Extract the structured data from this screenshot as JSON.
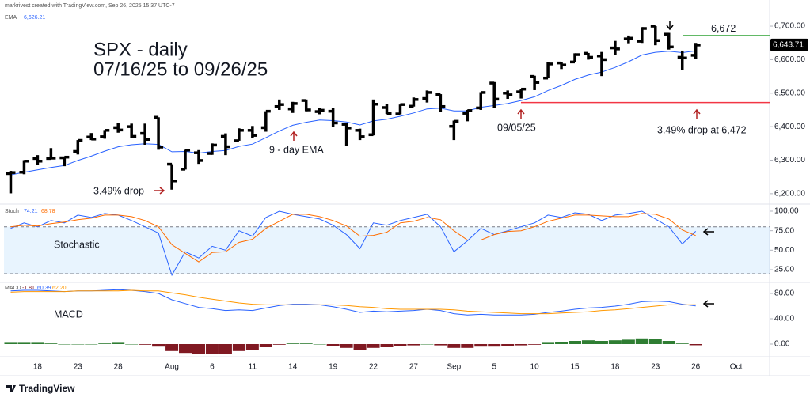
{
  "header": {
    "credit": "markrivest created with TradingView.com, Sep 26, 2025 15:37 UTC-7",
    "brand": "TradingView"
  },
  "xlim": [
    -0.5,
    56.5
  ],
  "xticks": [
    {
      "value": 2,
      "label": "18"
    },
    {
      "value": 5,
      "label": "23"
    },
    {
      "value": 8,
      "label": "28"
    },
    {
      "value": 12,
      "label": "Aug"
    },
    {
      "value": 15,
      "label": "6"
    },
    {
      "value": 18,
      "label": "11"
    },
    {
      "value": 21,
      "label": "14"
    },
    {
      "value": 24,
      "label": "19"
    },
    {
      "value": 27,
      "label": "22"
    },
    {
      "value": 30,
      "label": "27"
    },
    {
      "value": 33,
      "label": "Sep"
    },
    {
      "value": 36,
      "label": "5"
    },
    {
      "value": 39,
      "label": "10"
    },
    {
      "value": 42,
      "label": "15"
    },
    {
      "value": 45,
      "label": "18"
    },
    {
      "value": 48,
      "label": "23"
    },
    {
      "value": 51,
      "label": "26"
    },
    {
      "value": 54,
      "label": "Oct"
    }
  ],
  "chart_data": [
    {
      "type": "ohlc",
      "title": "SPX - daily",
      "subtitle": "07/16/25 to 09/26/25",
      "color": "#000000",
      "open": [
        6260,
        6264,
        6305,
        6305,
        6307,
        6326,
        6369,
        6370,
        6397,
        6400,
        6380,
        6428,
        6288,
        6273,
        6322,
        6320,
        6371,
        6358,
        6389,
        6397,
        6460,
        6453,
        6478,
        6445,
        6446,
        6407,
        6389,
        6376,
        6457,
        6438,
        6461,
        6484,
        6496,
        6401,
        6440,
        6456,
        6530,
        6500,
        6504,
        6550,
        6545,
        6590,
        6593,
        6619,
        6611,
        6635,
        6662,
        6655,
        6700,
        6676,
        6607,
        6613
      ],
      "high": [
        6268,
        6300,
        6315,
        6336,
        6310,
        6360,
        6381,
        6390,
        6410,
        6409,
        6409,
        6428,
        6288,
        6331,
        6330,
        6350,
        6380,
        6395,
        6402,
        6446,
        6481,
        6474,
        6481,
        6455,
        6456,
        6410,
        6394,
        6481,
        6467,
        6466,
        6487,
        6508,
        6497,
        6418,
        6450,
        6503,
        6533,
        6508,
        6513,
        6552,
        6592,
        6593,
        6619,
        6620,
        6623,
        6656,
        6672,
        6697,
        6700,
        6680,
        6627,
        6650
      ],
      "low": [
        6201,
        6258,
        6285,
        6303,
        6282,
        6317,
        6360,
        6364,
        6382,
        6365,
        6346,
        6331,
        6212,
        6272,
        6289,
        6316,
        6315,
        6358,
        6365,
        6385,
        6450,
        6441,
        6446,
        6437,
        6400,
        6343,
        6360,
        6374,
        6438,
        6437,
        6460,
        6472,
        6444,
        6360,
        6416,
        6450,
        6456,
        6483,
        6484,
        6509,
        6545,
        6572,
        6593,
        6600,
        6551,
        6614,
        6649,
        6650,
        6643,
        6630,
        6570,
        6603
      ],
      "close": [
        6263,
        6297,
        6297,
        6306,
        6309,
        6359,
        6363,
        6389,
        6390,
        6371,
        6362,
        6339,
        6238,
        6330,
        6299,
        6345,
        6340,
        6389,
        6374,
        6446,
        6466,
        6469,
        6450,
        6449,
        6411,
        6396,
        6370,
        6467,
        6439,
        6466,
        6481,
        6502,
        6460,
        6416,
        6448,
        6502,
        6482,
        6495,
        6512,
        6532,
        6587,
        6584,
        6615,
        6607,
        6600,
        6632,
        6664,
        6693,
        6657,
        6638,
        6605,
        6643.71
      ],
      "close_label": "6,643.71",
      "ema": {
        "name": "EMA",
        "color": "#2962ff",
        "last_label": "6,626.21",
        "values": [
          6256,
          6264,
          6271,
          6278,
          6284,
          6299,
          6312,
          6327,
          6340,
          6346,
          6349,
          6347,
          6325,
          6326,
          6321,
          6326,
          6329,
          6341,
          6348,
          6367,
          6387,
          6404,
          6413,
          6420,
          6418,
          6414,
          6405,
          6417,
          6422,
          6431,
          6441,
          6453,
          6455,
          6447,
          6447,
          6458,
          6463,
          6469,
          6478,
          6489,
          6508,
          6523,
          6541,
          6554,
          6563,
          6577,
          6594,
          6614,
          6622,
          6625,
          6621,
          6626.21
        ]
      },
      "levels": [
        {
          "value": 6672,
          "label": "6,672",
          "color": "#4caf50"
        },
        {
          "value": 6472,
          "color": "#f23645"
        }
      ],
      "annotations": [
        "9 - day EMA",
        "3.49% drop",
        "09/05/25",
        "3.49% drop at 6,472"
      ],
      "ylim": [
        6169,
        6778
      ],
      "yticks": [
        {
          "value": 6200,
          "label": "6,200.00"
        },
        {
          "value": 6300,
          "label": "6,300.00"
        },
        {
          "value": 6400,
          "label": "6,400.00"
        },
        {
          "value": 6500,
          "label": "6,500.00"
        },
        {
          "value": 6600,
          "label": "6,600.00"
        },
        {
          "value": 6700,
          "label": "6,700.00"
        }
      ]
    },
    {
      "type": "line",
      "name": "Stoch",
      "annotation": "Stochastic",
      "band": [
        20,
        80
      ],
      "ylim": [
        8.8,
        109.1
      ],
      "yticks": [
        {
          "value": 100,
          "label": "100.00"
        },
        {
          "value": 75,
          "label": "75.00"
        },
        {
          "value": 50,
          "label": "50.00"
        },
        {
          "value": 25,
          "label": "25.00"
        }
      ],
      "series": [
        {
          "color": "#2962ff",
          "last_label": "74.21",
          "values": [
            78,
            85,
            80,
            88,
            85,
            95,
            92,
            97,
            95,
            88,
            80,
            72,
            18,
            48,
            40,
            55,
            50,
            75,
            68,
            92,
            100,
            96,
            93,
            90,
            82,
            70,
            52,
            85,
            82,
            88,
            92,
            96,
            80,
            48,
            62,
            78,
            70,
            75,
            80,
            85,
            95,
            92,
            98,
            96,
            88,
            95,
            97,
            100,
            90,
            80,
            58,
            74.21
          ]
        },
        {
          "color": "#ff6d00",
          "last_label": "68.78",
          "values": [
            80,
            82,
            81,
            84,
            86,
            89,
            91,
            95,
            95,
            93,
            88,
            80,
            57,
            46,
            35,
            47,
            48,
            60,
            64,
            78,
            87,
            96,
            96,
            93,
            88,
            81,
            68,
            69,
            73,
            85,
            87,
            92,
            89,
            75,
            63,
            63,
            70,
            74,
            75,
            80,
            87,
            91,
            95,
            95,
            94,
            93,
            93,
            97,
            96,
            90,
            76,
            68.78
          ]
        }
      ]
    },
    {
      "type": "macd",
      "name": "MACD",
      "annotation": "MACD",
      "ylim": [
        -20,
        97.5
      ],
      "yticks": [
        {
          "value": 80,
          "label": "80.00"
        },
        {
          "value": 40,
          "label": "40.00"
        },
        {
          "value": 0,
          "label": "0.00"
        }
      ],
      "histogram": {
        "last_label": "-1.81",
        "up_color": "#2e7d32",
        "down_color": "#801922",
        "values": [
          2,
          2,
          2,
          1,
          0,
          0,
          0,
          1,
          2,
          0,
          -1,
          -4,
          -11,
          -14,
          -16,
          -15,
          -15,
          -11,
          -10,
          -5,
          -1,
          1,
          1,
          0,
          -3,
          -6,
          -9,
          -6,
          -5,
          -3,
          -2,
          0,
          -2,
          -6,
          -6,
          -4,
          -4,
          -3,
          -2,
          -1,
          2,
          3,
          5,
          6,
          5,
          6,
          7,
          9,
          8,
          5,
          1,
          -1.81
        ]
      },
      "series": [
        {
          "color": "#2962ff",
          "last_label": "60.39",
          "values": [
            84,
            85,
            85,
            84,
            83,
            84,
            84,
            85,
            86,
            85,
            83,
            80,
            70,
            64,
            58,
            56,
            53,
            54,
            53,
            57,
            61,
            63,
            63,
            62,
            59,
            55,
            50,
            52,
            51,
            52,
            53,
            55,
            53,
            48,
            46,
            47,
            46,
            46,
            46,
            47,
            50,
            52,
            55,
            57,
            58,
            60,
            63,
            67,
            68,
            67,
            63,
            60.39
          ]
        },
        {
          "color": "#ff9800",
          "last_label": "62.20",
          "values": [
            82,
            83,
            83,
            83,
            83,
            84,
            84,
            84,
            84,
            85,
            84,
            84,
            81,
            78,
            74,
            71,
            68,
            65,
            63,
            62,
            62,
            62,
            62,
            62,
            62,
            61,
            59,
            58,
            56,
            55,
            55,
            55,
            55,
            54,
            52,
            51,
            50,
            49,
            48,
            48,
            48,
            49,
            50,
            51,
            53,
            54,
            56,
            58,
            60,
            62,
            62,
            62.2
          ]
        }
      ]
    }
  ]
}
